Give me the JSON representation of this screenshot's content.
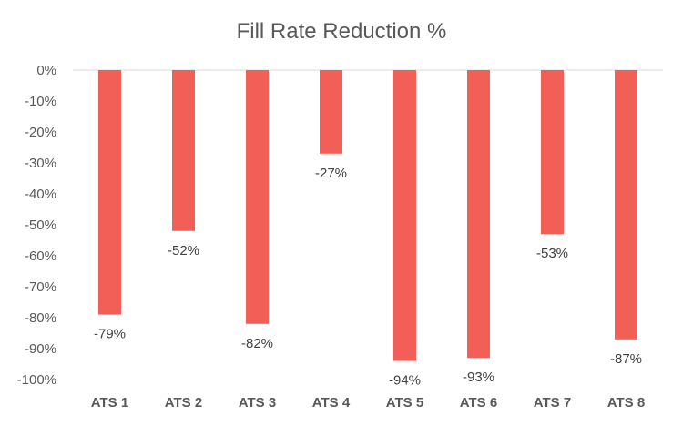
{
  "chart_data": {
    "type": "bar",
    "title": "Fill Rate Reduction %",
    "xlabel": "",
    "ylabel": "",
    "categories": [
      "ATS 1",
      "ATS 2",
      "ATS 3",
      "ATS 4",
      "ATS 5",
      "ATS 6",
      "ATS 7",
      "ATS 8"
    ],
    "values": [
      -79,
      -52,
      -82,
      -27,
      -94,
      -93,
      -53,
      -87
    ],
    "data_labels": [
      "-79%",
      "-52%",
      "-82%",
      "-27%",
      "-94%",
      "-93%",
      "-53%",
      "-87%"
    ],
    "ylim": [
      -100,
      0
    ],
    "yticks": [
      0,
      -10,
      -20,
      -30,
      -40,
      -50,
      -60,
      -70,
      -80,
      -90,
      -100
    ],
    "ytick_labels": [
      "0%",
      "-10%",
      "-20%",
      "-30%",
      "-40%",
      "-50%",
      "-60%",
      "-70%",
      "-80%",
      "-90%",
      "-100%"
    ],
    "grid": false,
    "legend": "none",
    "colors": {
      "bar": "#f25f57",
      "axis": "#d9d9d9",
      "text": "#595959"
    }
  }
}
